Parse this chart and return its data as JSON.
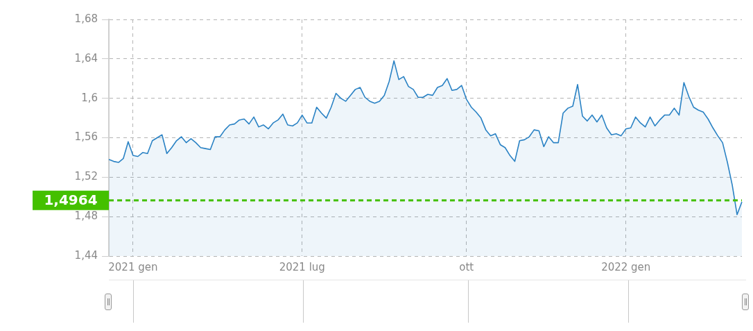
{
  "chart_data": {
    "type": "area",
    "categories": [
      null,
      null,
      null,
      null,
      null,
      "2021 gen",
      null,
      null,
      null,
      null,
      null,
      null,
      null,
      null,
      null,
      null,
      null,
      null,
      null,
      null,
      null,
      null,
      null,
      null,
      null,
      null,
      null,
      null,
      null,
      null,
      null,
      null,
      null,
      null,
      null,
      null,
      null,
      null,
      null,
      null,
      "2021 lug",
      null,
      null,
      null,
      null,
      null,
      null,
      null,
      null,
      null,
      null,
      null,
      null,
      null,
      null,
      null,
      null,
      null,
      null,
      null,
      null,
      null,
      null,
      null,
      null,
      null,
      null,
      null,
      null,
      null,
      null,
      null,
      null,
      null,
      "ott",
      null,
      null,
      null,
      null,
      null,
      null,
      null,
      null,
      null,
      null,
      null,
      null,
      null,
      null,
      null,
      null,
      null,
      null,
      null,
      null,
      null,
      null,
      null,
      null,
      null,
      null,
      null,
      null,
      null,
      null,
      null,
      null,
      "2022 gen",
      null,
      null,
      null,
      null,
      null,
      null,
      null,
      null,
      null,
      null,
      null,
      null,
      null,
      null,
      null,
      null,
      null,
      null,
      null,
      null,
      null,
      null,
      null,
      null
    ],
    "series": [
      {
        "color": "#2a82c4",
        "values": [
          1.538,
          1.536,
          1.535,
          1.539,
          1.556,
          1.542,
          1.541,
          1.545,
          1.544,
          1.557,
          1.56,
          1.563,
          1.544,
          1.55,
          1.557,
          1.561,
          1.555,
          1.559,
          1.555,
          1.55,
          1.549,
          1.548,
          1.561,
          1.561,
          1.568,
          1.573,
          1.574,
          1.578,
          1.579,
          1.574,
          1.581,
          1.571,
          1.573,
          1.569,
          1.575,
          1.578,
          1.584,
          1.573,
          1.572,
          1.575,
          1.583,
          1.575,
          1.575,
          1.591,
          1.585,
          1.58,
          1.591,
          1.605,
          1.6,
          1.597,
          1.603,
          1.609,
          1.611,
          1.601,
          1.597,
          1.595,
          1.597,
          1.603,
          1.617,
          1.638,
          1.619,
          1.622,
          1.612,
          1.609,
          1.601,
          1.601,
          1.604,
          1.603,
          1.611,
          1.613,
          1.62,
          1.608,
          1.609,
          1.613,
          1.599,
          1.591,
          1.586,
          1.58,
          1.568,
          1.562,
          1.564,
          1.553,
          1.55,
          1.542,
          1.536,
          1.557,
          1.558,
          1.561,
          1.568,
          1.567,
          1.551,
          1.561,
          1.555,
          1.555,
          1.585,
          1.59,
          1.592,
          1.614,
          1.582,
          1.577,
          1.583,
          1.576,
          1.583,
          1.57,
          1.563,
          1.564,
          1.562,
          1.569,
          1.57,
          1.581,
          1.575,
          1.571,
          1.581,
          1.572,
          1.578,
          1.583,
          1.583,
          1.59,
          1.583,
          1.616,
          1.602,
          1.591,
          1.588,
          1.586,
          1.579,
          1.57,
          1.562,
          1.555,
          1.535,
          1.512,
          1.482,
          1.495
        ]
      }
    ],
    "ylim": [
      1.44,
      1.68
    ],
    "yticks": [
      {
        "value": 1.44,
        "label": "1,44"
      },
      {
        "value": 1.48,
        "label": "1,48"
      },
      {
        "value": 1.52,
        "label": "1,52"
      },
      {
        "value": 1.56,
        "label": "1,56"
      },
      {
        "value": 1.6,
        "label": "1,6"
      },
      {
        "value": 1.64,
        "label": "1,64"
      },
      {
        "value": 1.68,
        "label": "1,68"
      }
    ],
    "ref_lines": [
      {
        "axis": "y",
        "value": 1.4964,
        "label": "1,4964",
        "color": "#44c000",
        "line_style": "dashed"
      }
    ],
    "grid": true,
    "legend": false
  }
}
